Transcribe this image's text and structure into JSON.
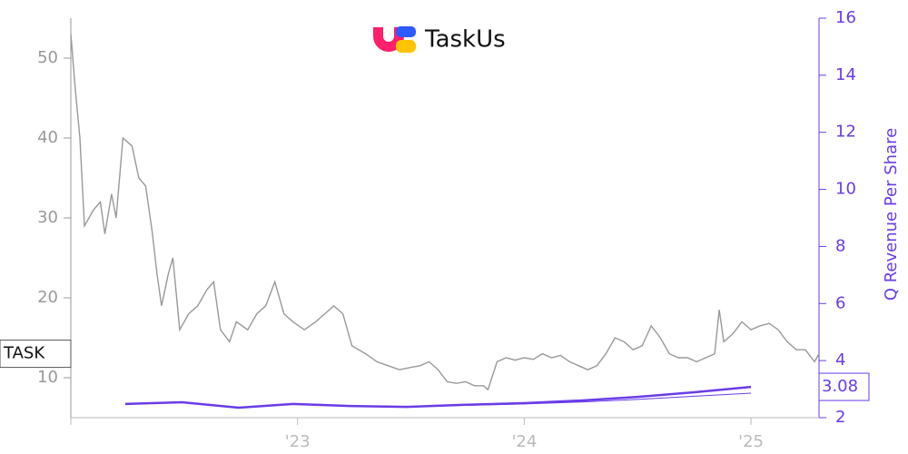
{
  "chart_data": {
    "type": "line",
    "title": "TaskUs",
    "y2label": "Q Revenue Per Share",
    "xlim": [
      2022.0,
      2025.3
    ],
    "xticks": [
      {
        "value": 2023,
        "label": "'23"
      },
      {
        "value": 2024,
        "label": "'24"
      },
      {
        "value": 2025,
        "label": "'25"
      }
    ],
    "ylim": [
      5,
      55
    ],
    "yticks": [
      10,
      20,
      30,
      40,
      50
    ],
    "y2lim": [
      2,
      16
    ],
    "y2ticks": [
      2,
      4,
      6,
      8,
      10,
      12,
      14,
      16
    ],
    "series": [
      {
        "name": "TASK",
        "color": "#999999",
        "axis": "y",
        "x": [
          2022.0,
          2022.02,
          2022.04,
          2022.06,
          2022.1,
          2022.13,
          2022.15,
          2022.18,
          2022.2,
          2022.23,
          2022.27,
          2022.3,
          2022.33,
          2022.36,
          2022.38,
          2022.4,
          2022.43,
          2022.45,
          2022.48,
          2022.52,
          2022.56,
          2022.6,
          2022.63,
          2022.66,
          2022.7,
          2022.73,
          2022.78,
          2022.82,
          2022.86,
          2022.9,
          2022.94,
          2022.98,
          2023.03,
          2023.08,
          2023.12,
          2023.16,
          2023.2,
          2023.24,
          2023.3,
          2023.35,
          2023.4,
          2023.45,
          2023.5,
          2023.54,
          2023.58,
          2023.62,
          2023.66,
          2023.7,
          2023.74,
          2023.78,
          2023.82,
          2023.84,
          2023.88,
          2023.92,
          2023.96,
          2024.0,
          2024.04,
          2024.08,
          2024.12,
          2024.16,
          2024.2,
          2024.24,
          2024.28,
          2024.32,
          2024.36,
          2024.4,
          2024.44,
          2024.48,
          2024.52,
          2024.56,
          2024.6,
          2024.64,
          2024.68,
          2024.72,
          2024.76,
          2024.8,
          2024.84,
          2024.86,
          2024.88,
          2024.92,
          2024.96,
          2025.0,
          2025.04,
          2025.08,
          2025.12,
          2025.16,
          2025.2,
          2025.24,
          2025.28,
          2025.3
        ],
        "values": [
          53,
          46,
          40,
          29,
          31,
          32,
          28,
          33,
          30,
          40,
          39,
          35,
          34,
          28,
          23,
          19,
          23,
          25,
          16,
          18,
          19,
          21,
          22,
          16,
          14.5,
          17,
          16,
          18,
          19,
          22,
          18,
          17,
          16,
          17,
          18,
          19,
          18,
          14,
          13,
          12,
          11.5,
          11,
          11.3,
          11.5,
          12,
          11,
          9.5,
          9.3,
          9.5,
          9,
          9,
          8.5,
          12,
          12.5,
          12.2,
          12.5,
          12.3,
          13,
          12.5,
          12.8,
          12,
          11.5,
          11,
          11.5,
          13,
          15,
          14.5,
          13.5,
          14,
          16.5,
          15,
          13,
          12.5,
          12.5,
          12,
          12.5,
          13,
          18.5,
          14.5,
          15.5,
          17,
          16,
          16.5,
          16.8,
          16,
          14.5,
          13.5,
          13.5,
          12,
          13
        ]
      },
      {
        "name": "Q Revenue Per Share",
        "color": "#6a3ce8",
        "axis": "y2",
        "x": [
          2022.24,
          2022.49,
          2022.74,
          2022.98,
          2023.23,
          2023.48,
          2023.73,
          2024.0,
          2024.25,
          2024.5,
          2024.75,
          2025.0
        ],
        "values": [
          2.48,
          2.54,
          2.35,
          2.48,
          2.41,
          2.38,
          2.45,
          2.51,
          2.6,
          2.73,
          2.89,
          3.08
        ]
      },
      {
        "color": "#6a3ce8",
        "axis": "y2",
        "x": [
          2023.48,
          2023.73,
          2024.0,
          2024.25,
          2024.5,
          2024.75,
          2025.0
        ],
        "values": [
          2.38,
          2.43,
          2.48,
          2.55,
          2.64,
          2.75,
          2.86
        ]
      }
    ]
  }
}
